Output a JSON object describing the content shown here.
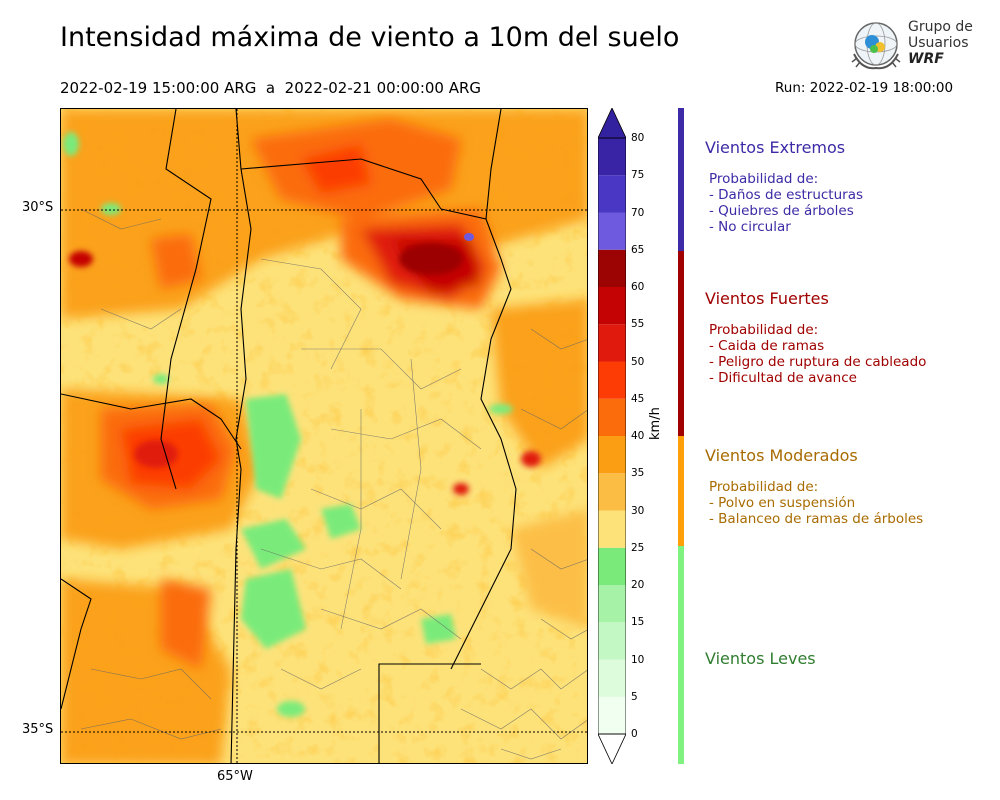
{
  "header": {
    "title": "Intensidad máxima de viento a 10m del suelo",
    "period": "2022-02-19 15:00:00 ARG  a  2022-02-21 00:00:00 ARG",
    "run": "Run: 2022-02-19 18:00:00"
  },
  "logo": {
    "line1": "Grupo de",
    "line2": "Usuarios",
    "line3": "WRF"
  },
  "map": {
    "lat_labels": [
      "30°S",
      "35°S"
    ],
    "lon_labels": [
      "65°W"
    ]
  },
  "colorbar": {
    "unit": "km/h",
    "ticks": [
      "80",
      "75",
      "70",
      "65",
      "60",
      "55",
      "50",
      "45",
      "40",
      "35",
      "30",
      "25",
      "20",
      "15",
      "10",
      "5",
      "0"
    ],
    "bins": [
      {
        "from": 0,
        "to": 5,
        "color": "#f0fff0"
      },
      {
        "from": 5,
        "to": 10,
        "color": "#dcfcdc"
      },
      {
        "from": 10,
        "to": 15,
        "color": "#c3f7c3"
      },
      {
        "from": 15,
        "to": 20,
        "color": "#a6f2a6"
      },
      {
        "from": 20,
        "to": 25,
        "color": "#7aeb7a"
      },
      {
        "from": 25,
        "to": 30,
        "color": "#fde27a"
      },
      {
        "from": 30,
        "to": 35,
        "color": "#fcbd45"
      },
      {
        "from": 35,
        "to": 40,
        "color": "#fb9e14"
      },
      {
        "from": 40,
        "to": 45,
        "color": "#fb6c0c"
      },
      {
        "from": 45,
        "to": 50,
        "color": "#fc3c04"
      },
      {
        "from": 50,
        "to": 55,
        "color": "#e01a0c"
      },
      {
        "from": 55,
        "to": 60,
        "color": "#c40404"
      },
      {
        "from": 60,
        "to": 65,
        "color": "#9c0404"
      },
      {
        "from": 65,
        "to": 70,
        "color": "#6e5ade"
      },
      {
        "from": 70,
        "to": 75,
        "color": "#4a38c4"
      },
      {
        "from": 75,
        "to": 80,
        "color": "#3a24a6"
      }
    ],
    "over_color": "#3322a0"
  },
  "categories": [
    {
      "title": "Vientos Extremos",
      "color": "#3c2aa6",
      "range": [
        65,
        80
      ],
      "heading": "Probabilidad de:",
      "items": [
        "- Daños de estructuras",
        "- Quiebres de árboles",
        "- No circular"
      ]
    },
    {
      "title": "Vientos Fuertes",
      "color": "#a00000",
      "range": [
        40,
        65
      ],
      "heading": "Probabilidad de:",
      "items": [
        "- Caida de ramas",
        "- Peligro de ruptura de cableado",
        "- Dificultad de avance"
      ]
    },
    {
      "title": "Vientos Moderados",
      "color": "#a86b00",
      "bar_color": "#ff9f0a",
      "range": [
        25,
        40
      ],
      "heading": "Probabilidad de:",
      "items": [
        "- Polvo en suspensión",
        "- Balanceo de ramas de árboles"
      ]
    },
    {
      "title": "Vientos Leves",
      "color": "#2f7d2f",
      "bar_color": "#7ff27f",
      "range": [
        0,
        25
      ],
      "heading": "",
      "items": []
    }
  ]
}
